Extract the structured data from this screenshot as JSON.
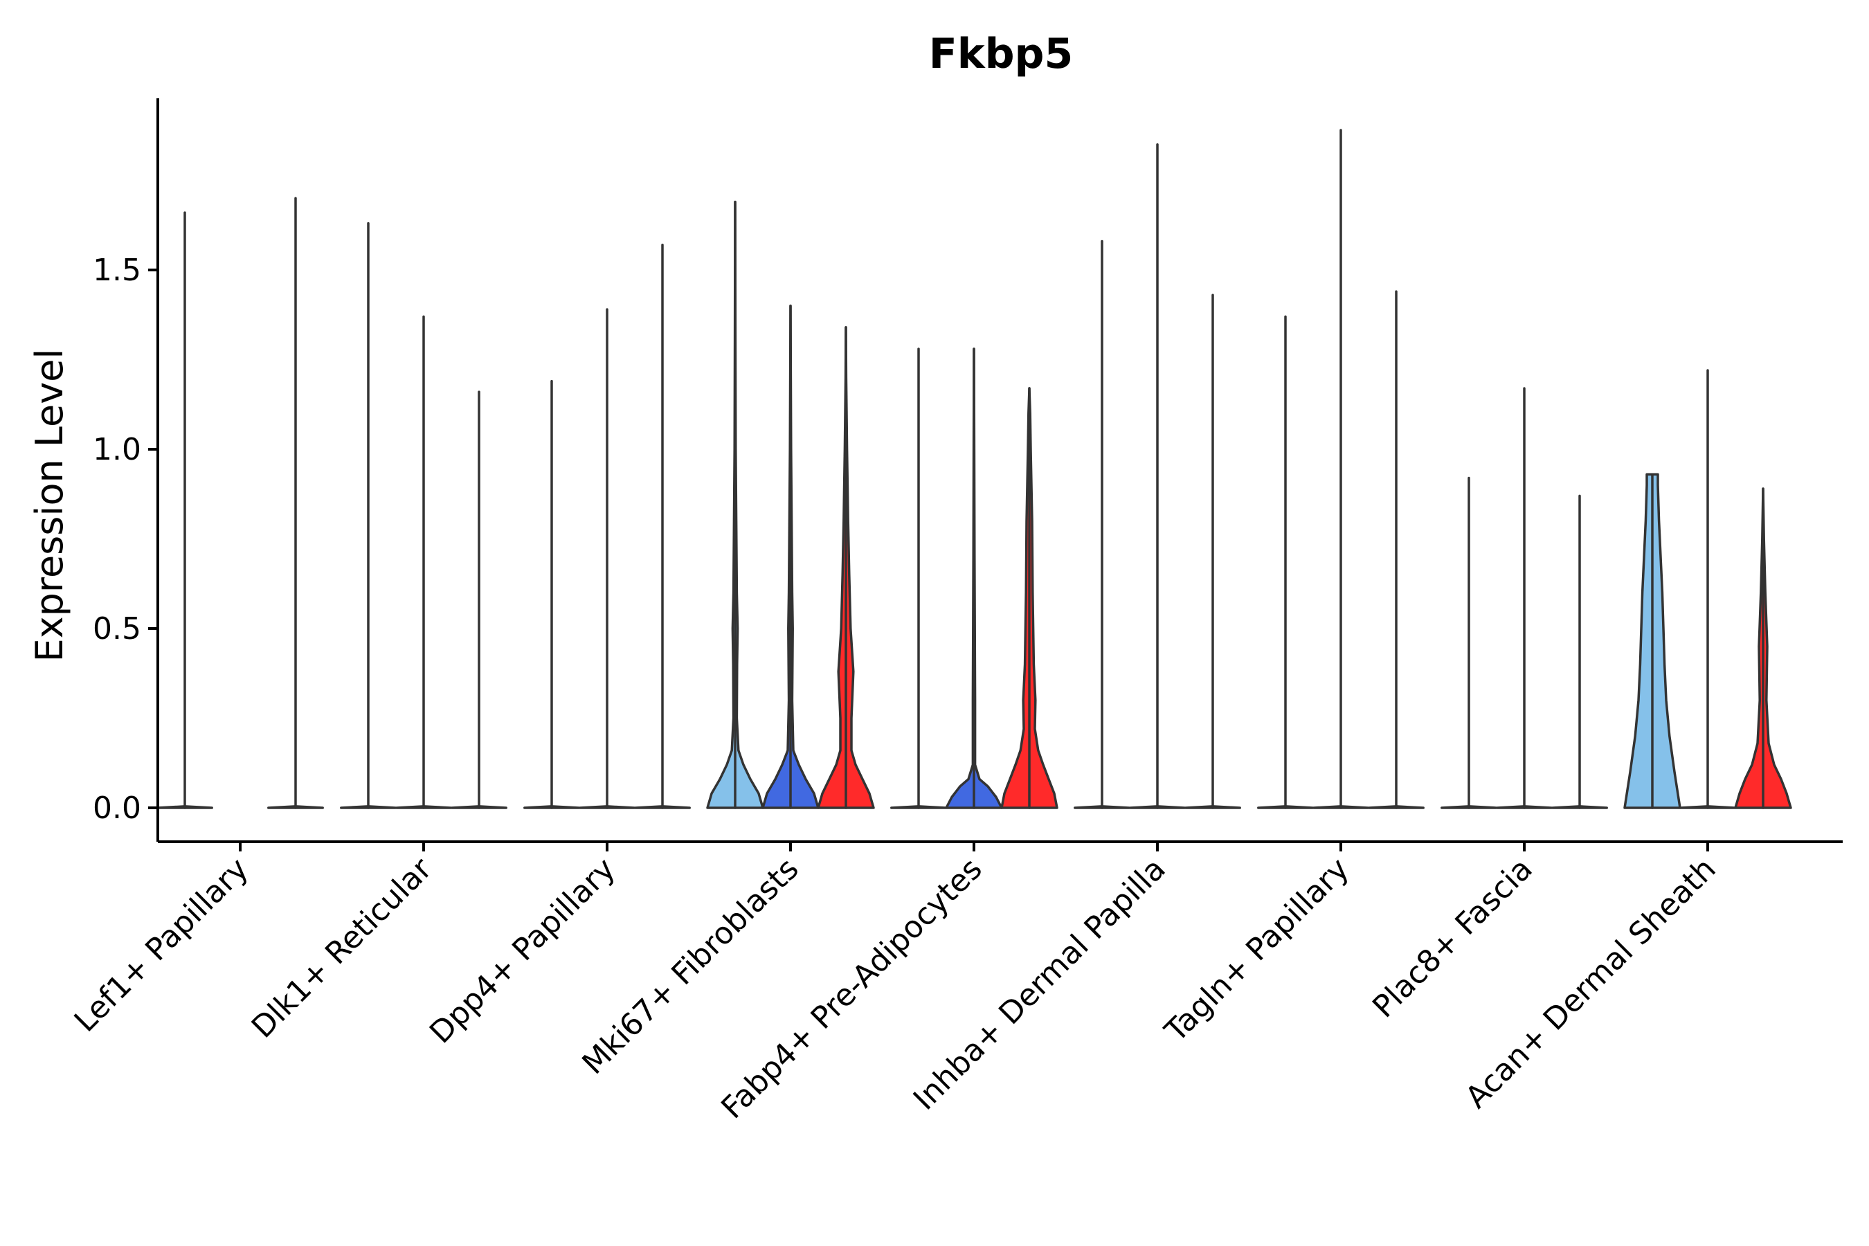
{
  "chart_data": {
    "type": "violin",
    "title": "Fkbp5",
    "xlabel": "",
    "ylabel": "Expression Level",
    "ylim": [
      -0.1,
      1.98
    ],
    "yticks": [
      0.0,
      0.5,
      1.0,
      1.5
    ],
    "ytick_labels": [
      "0.0",
      "0.5",
      "1.0",
      "1.5"
    ],
    "grid": false,
    "legend": "none",
    "series_colors": [
      "#85C1EA",
      "#4169E1",
      "#FF2A2A"
    ],
    "categories": [
      "Lef1+ Papillary",
      "Dlk1+ Reticular",
      "Dpp4+ Papillary",
      "Mki67+ Fibroblasts",
      "Fabp4+ Pre-Adipocytes",
      "Inhba+ Dermal Papilla",
      "Tagln+ Papillary",
      "Plac8+ Fascia",
      "Acan+ Dermal Sheath"
    ],
    "groups": [
      {
        "category": "Lef1+ Papillary",
        "violins": [
          {
            "max": 1.66,
            "profile": [
              [
                0,
                1.0
              ],
              [
                0.004,
                0.0
              ]
            ]
          },
          {
            "max": 0.0,
            "profile": []
          },
          {
            "max": 1.7,
            "profile": [
              [
                0,
                1.0
              ],
              [
                0.004,
                0.0
              ]
            ]
          }
        ]
      },
      {
        "category": "Dlk1+ Reticular",
        "violins": [
          {
            "max": 1.63,
            "profile": [
              [
                0,
                1.0
              ],
              [
                0.004,
                0.0
              ]
            ]
          },
          {
            "max": 1.37,
            "profile": [
              [
                0,
                1.0
              ],
              [
                0.004,
                0.0
              ]
            ]
          },
          {
            "max": 1.16,
            "profile": [
              [
                0,
                1.0
              ],
              [
                0.004,
                0.0
              ]
            ]
          }
        ]
      },
      {
        "category": "Dpp4+ Papillary",
        "violins": [
          {
            "max": 1.19,
            "profile": [
              [
                0,
                1.0
              ],
              [
                0.004,
                0.0
              ]
            ]
          },
          {
            "max": 1.39,
            "profile": [
              [
                0,
                1.0
              ],
              [
                0.004,
                0.0
              ]
            ]
          },
          {
            "max": 1.57,
            "profile": [
              [
                0,
                1.0
              ],
              [
                0.004,
                0.0
              ]
            ]
          }
        ]
      },
      {
        "category": "Mki67+ Fibroblasts",
        "violins": [
          {
            "max": 1.69,
            "profile": [
              [
                0,
                1.0
              ],
              [
                0.04,
                0.85
              ],
              [
                0.08,
                0.55
              ],
              [
                0.12,
                0.3
              ],
              [
                0.16,
                0.12
              ],
              [
                0.25,
                0.06
              ],
              [
                0.4,
                0.07
              ],
              [
                0.5,
                0.09
              ],
              [
                0.6,
                0.06
              ],
              [
                0.8,
                0.04
              ],
              [
                1.0,
                0.02
              ],
              [
                1.3,
                0.01
              ],
              [
                1.69,
                0.0
              ]
            ]
          },
          {
            "max": 1.4,
            "profile": [
              [
                0,
                1.0
              ],
              [
                0.04,
                0.85
              ],
              [
                0.08,
                0.55
              ],
              [
                0.12,
                0.3
              ],
              [
                0.16,
                0.1
              ],
              [
                0.3,
                0.06
              ],
              [
                0.5,
                0.08
              ],
              [
                0.6,
                0.06
              ],
              [
                0.8,
                0.04
              ],
              [
                1.0,
                0.02
              ],
              [
                1.2,
                0.01
              ],
              [
                1.4,
                0.0
              ]
            ]
          },
          {
            "max": 1.34,
            "profile": [
              [
                0,
                1.0
              ],
              [
                0.04,
                0.85
              ],
              [
                0.08,
                0.6
              ],
              [
                0.12,
                0.35
              ],
              [
                0.16,
                0.2
              ],
              [
                0.25,
                0.2
              ],
              [
                0.38,
                0.27
              ],
              [
                0.5,
                0.17
              ],
              [
                0.65,
                0.12
              ],
              [
                0.8,
                0.08
              ],
              [
                1.0,
                0.04
              ],
              [
                1.2,
                0.01
              ],
              [
                1.34,
                0.0
              ]
            ]
          }
        ]
      },
      {
        "category": "Fabp4+ Pre-Adipocytes",
        "violins": [
          {
            "max": 1.28,
            "profile": [
              [
                0,
                1.0
              ],
              [
                0.004,
                0.0
              ]
            ]
          },
          {
            "max": 1.28,
            "profile": [
              [
                0,
                1.0
              ],
              [
                0.03,
                0.8
              ],
              [
                0.06,
                0.5
              ],
              [
                0.08,
                0.2
              ],
              [
                0.12,
                0.04
              ],
              [
                0.3,
                0.04
              ],
              [
                0.5,
                0.03
              ],
              [
                0.7,
                0.02
              ],
              [
                1.0,
                0.01
              ],
              [
                1.28,
                0.0
              ]
            ]
          },
          {
            "max": 1.17,
            "profile": [
              [
                0,
                1.0
              ],
              [
                0.04,
                0.9
              ],
              [
                0.08,
                0.7
              ],
              [
                0.12,
                0.5
              ],
              [
                0.16,
                0.32
              ],
              [
                0.22,
                0.2
              ],
              [
                0.3,
                0.22
              ],
              [
                0.4,
                0.16
              ],
              [
                0.6,
                0.12
              ],
              [
                0.8,
                0.1
              ],
              [
                1.0,
                0.05
              ],
              [
                1.1,
                0.03
              ],
              [
                1.17,
                0.0
              ]
            ]
          }
        ]
      },
      {
        "category": "Inhba+ Dermal Papilla",
        "violins": [
          {
            "max": 1.58,
            "profile": [
              [
                0,
                1.0
              ],
              [
                0.004,
                0.0
              ]
            ]
          },
          {
            "max": 1.85,
            "profile": [
              [
                0,
                1.0
              ],
              [
                0.004,
                0.0
              ]
            ]
          },
          {
            "max": 1.43,
            "profile": [
              [
                0,
                1.0
              ],
              [
                0.004,
                0.0
              ]
            ]
          }
        ]
      },
      {
        "category": "Tagln+ Papillary",
        "violins": [
          {
            "max": 1.37,
            "profile": [
              [
                0,
                1.0
              ],
              [
                0.004,
                0.0
              ]
            ]
          },
          {
            "max": 1.89,
            "profile": [
              [
                0,
                1.0
              ],
              [
                0.004,
                0.0
              ]
            ]
          },
          {
            "max": 1.44,
            "profile": [
              [
                0,
                1.0
              ],
              [
                0.004,
                0.0
              ]
            ]
          }
        ]
      },
      {
        "category": "Plac8+ Fascia",
        "violins": [
          {
            "max": 0.92,
            "profile": [
              [
                0,
                1.0
              ],
              [
                0.004,
                0.0
              ]
            ]
          },
          {
            "max": 1.17,
            "profile": [
              [
                0,
                1.0
              ],
              [
                0.004,
                0.0
              ]
            ]
          },
          {
            "max": 0.87,
            "profile": [
              [
                0,
                1.0
              ],
              [
                0.004,
                0.0
              ]
            ]
          }
        ]
      },
      {
        "category": "Acan+ Dermal Sheath",
        "violins": [
          {
            "max": 0.93,
            "profile": [
              [
                0,
                1.0
              ],
              [
                0.1,
                0.8
              ],
              [
                0.2,
                0.62
              ],
              [
                0.3,
                0.5
              ],
              [
                0.4,
                0.44
              ],
              [
                0.5,
                0.4
              ],
              [
                0.6,
                0.36
              ],
              [
                0.7,
                0.3
              ],
              [
                0.8,
                0.24
              ],
              [
                0.9,
                0.2
              ],
              [
                0.93,
                0.2
              ]
            ]
          },
          {
            "max": 1.22,
            "profile": [
              [
                0,
                1.0
              ],
              [
                0.004,
                0.0
              ]
            ]
          },
          {
            "max": 0.89,
            "profile": [
              [
                0,
                1.0
              ],
              [
                0.04,
                0.85
              ],
              [
                0.08,
                0.65
              ],
              [
                0.12,
                0.4
              ],
              [
                0.18,
                0.2
              ],
              [
                0.3,
                0.12
              ],
              [
                0.45,
                0.15
              ],
              [
                0.6,
                0.08
              ],
              [
                0.75,
                0.03
              ],
              [
                0.89,
                0.0
              ]
            ]
          }
        ]
      }
    ]
  }
}
